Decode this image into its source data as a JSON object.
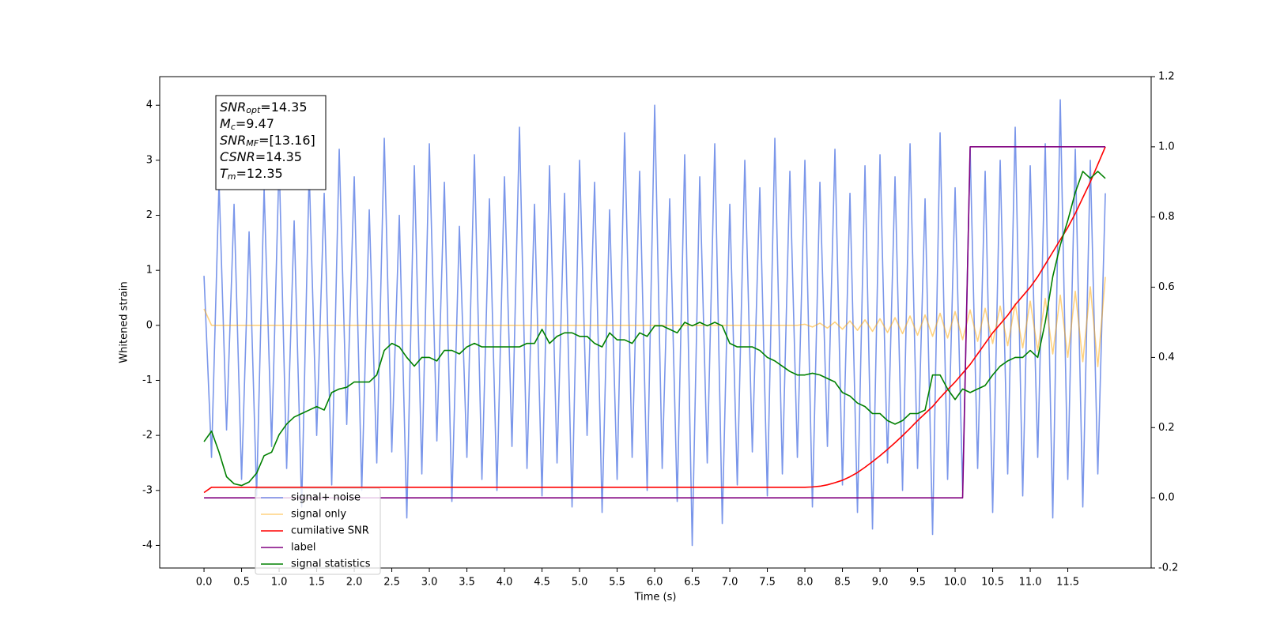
{
  "chart_data": {
    "type": "line",
    "xlabel": "Time (s)",
    "ylabel": "Whitened strain",
    "x": [
      0,
      0.1,
      0.2,
      0.3,
      0.4,
      0.5,
      0.6,
      0.7,
      0.8,
      0.9,
      1,
      1.1,
      1.2,
      1.3,
      1.4,
      1.5,
      1.6,
      1.7,
      1.8,
      1.9,
      2,
      2.1,
      2.2,
      2.3,
      2.4,
      2.5,
      2.6,
      2.7,
      2.8,
      2.9,
      3,
      3.1,
      3.2,
      3.3,
      3.4,
      3.5,
      3.6,
      3.7,
      3.8,
      3.9,
      4,
      4.1,
      4.2,
      4.3,
      4.4,
      4.5,
      4.6,
      4.7,
      4.8,
      4.9,
      5,
      5.1,
      5.2,
      5.3,
      5.4,
      5.5,
      5.6,
      5.7,
      5.8,
      5.9,
      6,
      6.1,
      6.2,
      6.3,
      6.4,
      6.5,
      6.6,
      6.7,
      6.8,
      6.9,
      7,
      7.1,
      7.2,
      7.3,
      7.4,
      7.5,
      7.6,
      7.7,
      7.8,
      7.9,
      8,
      8.1,
      8.2,
      8.3,
      8.4,
      8.5,
      8.6,
      8.7,
      8.8,
      8.9,
      9,
      9.1,
      9.2,
      9.3,
      9.4,
      9.5,
      9.6,
      9.7,
      9.8,
      9.9,
      10,
      10.1,
      10.2,
      10.3,
      10.4,
      10.5,
      10.6,
      10.7,
      10.8,
      10.9,
      11,
      11.1,
      11.2,
      11.3,
      11.4,
      11.5,
      11.6,
      11.7,
      11.8,
      11.9,
      12
    ],
    "series": [
      {
        "name": "signal+ noise",
        "color": "#4169e1",
        "alpha": 0.7,
        "values": [
          0.9,
          -2.4,
          2.6,
          -1.9,
          2.2,
          -2.8,
          1.7,
          -3.1,
          2.5,
          -2.2,
          3.0,
          -2.6,
          1.9,
          -3.3,
          2.8,
          -2.0,
          2.4,
          -2.9,
          3.2,
          -1.8,
          2.7,
          -3.0,
          2.1,
          -2.5,
          3.4,
          -2.3,
          2.0,
          -3.5,
          2.9,
          -2.7,
          3.3,
          -2.1,
          2.6,
          -3.2,
          1.8,
          -2.4,
          3.1,
          -2.8,
          2.3,
          -3.0,
          2.7,
          -2.2,
          3.6,
          -2.6,
          2.2,
          -3.1,
          2.9,
          -2.5,
          2.4,
          -3.3,
          3.0,
          -2.0,
          2.6,
          -3.4,
          2.1,
          -2.8,
          3.5,
          -2.4,
          2.8,
          -3.0,
          4.0,
          -2.6,
          2.3,
          -3.2,
          3.1,
          -4.0,
          2.7,
          -2.5,
          3.3,
          -3.6,
          2.2,
          -2.9,
          3.0,
          -2.3,
          2.5,
          -3.1,
          3.4,
          -2.7,
          2.8,
          -2.4,
          3.0,
          -3.3,
          2.6,
          -2.2,
          3.2,
          -2.9,
          2.4,
          -3.4,
          2.9,
          -3.7,
          3.1,
          -2.5,
          2.7,
          -3.0,
          3.3,
          -2.6,
          2.3,
          -3.8,
          3.5,
          -2.8,
          2.5,
          -3.0,
          3.2,
          -2.6,
          2.8,
          -3.4,
          3.0,
          -2.7,
          3.6,
          -3.1,
          2.9,
          -2.4,
          3.3,
          -3.5,
          4.1,
          -2.8,
          3.2,
          -3.3,
          3.0,
          -2.7,
          2.4
        ]
      },
      {
        "name": "signal only",
        "color": "#ffa500",
        "alpha": 0.5,
        "values": [
          0.3,
          0,
          0,
          0,
          0,
          0,
          0,
          0,
          0,
          0,
          0,
          0,
          0,
          0,
          0,
          0,
          0,
          0,
          0,
          0,
          0,
          0,
          0,
          0,
          0,
          0,
          0,
          0,
          0,
          0,
          0,
          0,
          0,
          0,
          0,
          0,
          0,
          0,
          0,
          0,
          0,
          0,
          0,
          0,
          0,
          0,
          0,
          0,
          0,
          0,
          0,
          0,
          0,
          0,
          0,
          0,
          0,
          0,
          0,
          0,
          0,
          0,
          0,
          0,
          0,
          0,
          0,
          0,
          0,
          0,
          0,
          0,
          0,
          0,
          0,
          0,
          0,
          0,
          0,
          0,
          0.02,
          -0.03,
          0.04,
          -0.05,
          0.06,
          -0.07,
          0.08,
          -0.09,
          0.1,
          -0.11,
          0.12,
          -0.13,
          0.14,
          -0.15,
          0.17,
          -0.18,
          0.19,
          -0.2,
          0.22,
          -0.23,
          0.25,
          -0.26,
          0.28,
          -0.29,
          0.31,
          -0.33,
          0.35,
          -0.37,
          0.39,
          -0.41,
          0.44,
          -0.46,
          0.49,
          -0.52,
          0.55,
          -0.58,
          0.62,
          -0.66,
          0.7,
          -0.75,
          0.88
        ]
      },
      {
        "name": "cumilative SNR",
        "color": "#ff0000",
        "axis": "y2",
        "values": [
          0.015,
          0.03,
          0.03,
          0.03,
          0.03,
          0.03,
          0.03,
          0.03,
          0.03,
          0.03,
          0.03,
          0.03,
          0.03,
          0.03,
          0.03,
          0.03,
          0.03,
          0.03,
          0.03,
          0.03,
          0.03,
          0.03,
          0.03,
          0.03,
          0.03,
          0.03,
          0.03,
          0.03,
          0.03,
          0.03,
          0.03,
          0.03,
          0.03,
          0.03,
          0.03,
          0.03,
          0.03,
          0.03,
          0.03,
          0.03,
          0.03,
          0.03,
          0.03,
          0.03,
          0.03,
          0.03,
          0.03,
          0.03,
          0.03,
          0.03,
          0.03,
          0.03,
          0.03,
          0.03,
          0.03,
          0.03,
          0.03,
          0.03,
          0.03,
          0.03,
          0.03,
          0.03,
          0.03,
          0.03,
          0.03,
          0.03,
          0.03,
          0.03,
          0.03,
          0.03,
          0.03,
          0.03,
          0.03,
          0.03,
          0.03,
          0.03,
          0.03,
          0.03,
          0.03,
          0.03,
          0.03,
          0.031,
          0.033,
          0.037,
          0.043,
          0.05,
          0.06,
          0.072,
          0.087,
          0.103,
          0.12,
          0.138,
          0.157,
          0.177,
          0.198,
          0.22,
          0.24,
          0.26,
          0.285,
          0.308,
          0.33,
          0.355,
          0.38,
          0.41,
          0.44,
          0.47,
          0.495,
          0.52,
          0.55,
          0.575,
          0.6,
          0.63,
          0.665,
          0.7,
          0.735,
          0.77,
          0.81,
          0.855,
          0.9,
          0.95,
          1.0
        ]
      },
      {
        "name": "label",
        "color": "#800080",
        "axis": "y2",
        "values": [
          0,
          0,
          0,
          0,
          0,
          0,
          0,
          0,
          0,
          0,
          0,
          0,
          0,
          0,
          0,
          0,
          0,
          0,
          0,
          0,
          0,
          0,
          0,
          0,
          0,
          0,
          0,
          0,
          0,
          0,
          0,
          0,
          0,
          0,
          0,
          0,
          0,
          0,
          0,
          0,
          0,
          0,
          0,
          0,
          0,
          0,
          0,
          0,
          0,
          0,
          0,
          0,
          0,
          0,
          0,
          0,
          0,
          0,
          0,
          0,
          0,
          0,
          0,
          0,
          0,
          0,
          0,
          0,
          0,
          0,
          0,
          0,
          0,
          0,
          0,
          0,
          0,
          0,
          0,
          0,
          0,
          0,
          0,
          0,
          0,
          0,
          0,
          0,
          0,
          0,
          0,
          0,
          0,
          0,
          0,
          0,
          0,
          0,
          0,
          0,
          0,
          0,
          1,
          1,
          1,
          1,
          1,
          1,
          1,
          1,
          1,
          1,
          1,
          1,
          1,
          1,
          1,
          1,
          1,
          1,
          1
        ]
      },
      {
        "name": "signal statistics",
        "color": "#008000",
        "axis": "y2",
        "values": [
          0.16,
          0.19,
          0.13,
          0.06,
          0.04,
          0.035,
          0.045,
          0.07,
          0.12,
          0.13,
          0.18,
          0.21,
          0.23,
          0.24,
          0.25,
          0.26,
          0.25,
          0.3,
          0.31,
          0.315,
          0.33,
          0.33,
          0.33,
          0.35,
          0.42,
          0.44,
          0.43,
          0.4,
          0.375,
          0.4,
          0.4,
          0.39,
          0.42,
          0.42,
          0.41,
          0.43,
          0.44,
          0.43,
          0.43,
          0.43,
          0.43,
          0.43,
          0.43,
          0.44,
          0.44,
          0.48,
          0.44,
          0.46,
          0.47,
          0.47,
          0.46,
          0.46,
          0.44,
          0.43,
          0.47,
          0.45,
          0.45,
          0.44,
          0.47,
          0.46,
          0.49,
          0.49,
          0.48,
          0.47,
          0.5,
          0.49,
          0.5,
          0.49,
          0.5,
          0.49,
          0.44,
          0.43,
          0.43,
          0.43,
          0.42,
          0.4,
          0.39,
          0.375,
          0.36,
          0.35,
          0.35,
          0.355,
          0.35,
          0.34,
          0.33,
          0.3,
          0.29,
          0.27,
          0.26,
          0.24,
          0.24,
          0.22,
          0.21,
          0.22,
          0.24,
          0.24,
          0.25,
          0.35,
          0.35,
          0.31,
          0.28,
          0.31,
          0.3,
          0.31,
          0.32,
          0.35,
          0.375,
          0.39,
          0.4,
          0.4,
          0.42,
          0.4,
          0.5,
          0.63,
          0.72,
          0.79,
          0.87,
          0.93,
          0.91,
          0.93,
          0.91
        ]
      }
    ],
    "xlim": [
      -0.59,
      12.61
    ],
    "xticks": [
      {
        "value": 0,
        "label": "0.0"
      },
      0.5,
      {
        "value": 1,
        "label": "1.0"
      },
      1.5,
      {
        "value": 2,
        "label": "2.0"
      },
      2.5,
      {
        "value": 3,
        "label": "3.0"
      },
      3.5,
      {
        "value": 4,
        "label": "4.0"
      },
      4.5,
      {
        "value": 5,
        "label": "5.0"
      },
      5.5,
      {
        "value": 6,
        "label": "6.0"
      },
      6.5,
      {
        "value": 7,
        "label": "7.0"
      },
      7.5,
      {
        "value": 8,
        "label": "8.0"
      },
      8.5,
      {
        "value": 9,
        "label": "9.0"
      },
      9.5,
      {
        "value": 10,
        "label": "10.0"
      },
      10.5,
      {
        "value": 11,
        "label": "11.0"
      },
      11.5
    ],
    "ylim": [
      -4.41,
      4.52
    ],
    "yticks": [
      -4,
      -3,
      -2,
      -1,
      0,
      1,
      2,
      3,
      4
    ],
    "y2lim": [
      -0.2,
      1.2
    ],
    "y2ticks": [
      -0.2,
      {
        "value": 0,
        "label": "0.0"
      },
      0.2,
      0.4,
      0.6,
      0.8,
      {
        "value": 1,
        "label": "1.0"
      },
      1.2
    ],
    "legend_loc": "lower left",
    "annotation_lines": [
      {
        "symbol": "SNR",
        "subscript": "opt",
        "text": "=14.35"
      },
      {
        "symbol": "M",
        "subscript": "c",
        "text": "=9.47"
      },
      {
        "symbol": "SNR",
        "subscript": "MF",
        "text": "=[13.16]"
      },
      {
        "symbol": "CSNR",
        "text": "=14.35"
      },
      {
        "symbol": "T",
        "subscript": "m",
        "text": "=12.35"
      }
    ]
  }
}
